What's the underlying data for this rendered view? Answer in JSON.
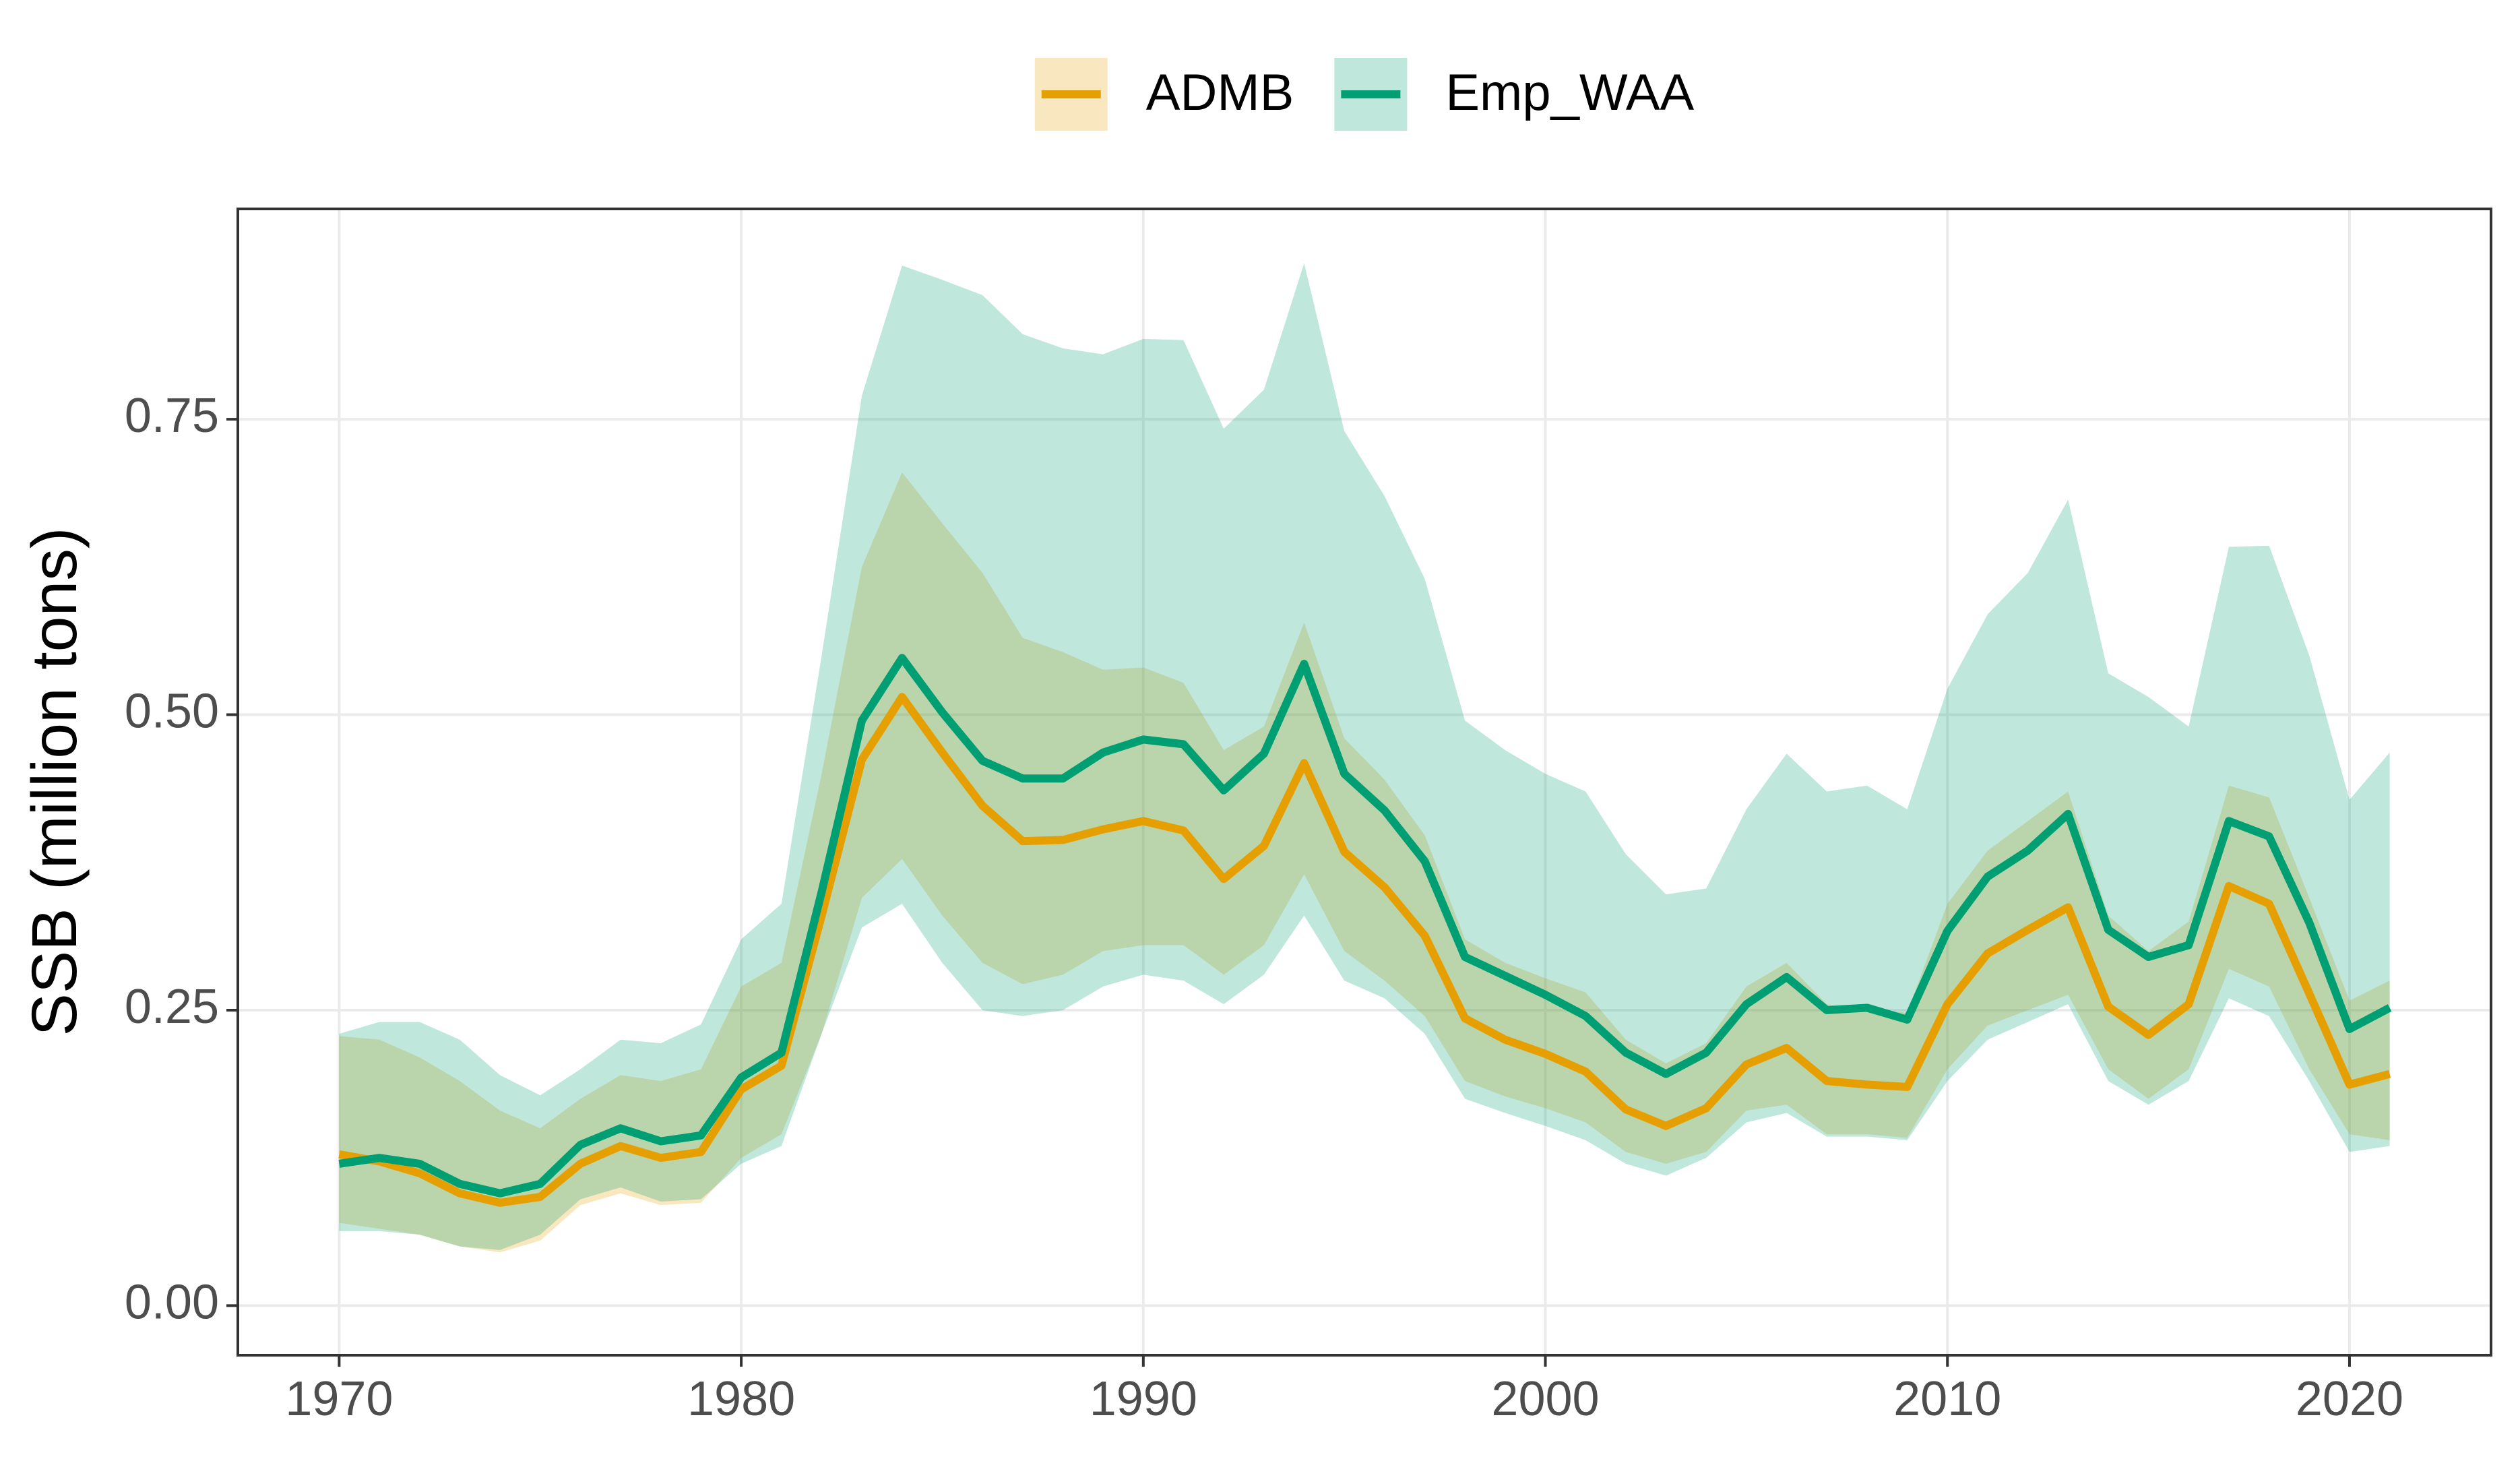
{
  "chart_data": {
    "type": "line",
    "y_label": "SSB (million tons)",
    "x": [
      1970,
      1971,
      1972,
      1973,
      1974,
      1975,
      1976,
      1977,
      1978,
      1979,
      1980,
      1981,
      1982,
      1983,
      1984,
      1985,
      1986,
      1987,
      1988,
      1989,
      1990,
      1991,
      1992,
      1993,
      1994,
      1995,
      1996,
      1997,
      1998,
      1999,
      2000,
      2001,
      2002,
      2003,
      2004,
      2005,
      2006,
      2007,
      2008,
      2009,
      2010,
      2011,
      2012,
      2013,
      2014,
      2015,
      2016,
      2017,
      2018,
      2019,
      2020,
      2021
    ],
    "series": [
      {
        "name": "ADMB",
        "color": "#E69F00",
        "values": [
          0.128,
          0.122,
          0.112,
          0.095,
          0.087,
          0.092,
          0.12,
          0.135,
          0.125,
          0.13,
          0.183,
          0.203,
          0.33,
          0.462,
          0.515,
          0.468,
          0.423,
          0.393,
          0.394,
          0.403,
          0.41,
          0.402,
          0.361,
          0.389,
          0.459,
          0.384,
          0.354,
          0.313,
          0.243,
          0.225,
          0.213,
          0.198,
          0.166,
          0.152,
          0.167,
          0.204,
          0.218,
          0.19,
          0.187,
          0.185,
          0.255,
          0.298,
          0.318,
          0.337,
          0.253,
          0.229,
          0.255,
          0.355,
          0.34,
          0.264,
          0.187,
          0.196
        ],
        "lower": [
          0.07,
          0.065,
          0.06,
          0.05,
          0.045,
          0.055,
          0.085,
          0.095,
          0.085,
          0.087,
          0.125,
          0.145,
          0.23,
          0.345,
          0.378,
          0.33,
          0.29,
          0.272,
          0.28,
          0.3,
          0.305,
          0.305,
          0.28,
          0.305,
          0.365,
          0.3,
          0.275,
          0.245,
          0.19,
          0.177,
          0.167,
          0.155,
          0.13,
          0.12,
          0.13,
          0.165,
          0.17,
          0.145,
          0.145,
          0.142,
          0.2,
          0.237,
          0.25,
          0.263,
          0.2,
          0.175,
          0.2,
          0.285,
          0.27,
          0.2,
          0.145,
          0.14
        ],
        "upper": [
          0.228,
          0.225,
          0.21,
          0.19,
          0.165,
          0.15,
          0.175,
          0.195,
          0.19,
          0.2,
          0.27,
          0.29,
          0.45,
          0.625,
          0.705,
          0.662,
          0.62,
          0.565,
          0.553,
          0.538,
          0.54,
          0.527,
          0.47,
          0.49,
          0.578,
          0.48,
          0.445,
          0.398,
          0.31,
          0.29,
          0.277,
          0.265,
          0.225,
          0.205,
          0.222,
          0.27,
          0.29,
          0.255,
          0.25,
          0.248,
          0.34,
          0.385,
          0.41,
          0.435,
          0.33,
          0.3,
          0.325,
          0.44,
          0.43,
          0.345,
          0.258,
          0.275
        ]
      },
      {
        "name": "Emp_WAA",
        "color": "#009E73",
        "values": [
          0.12,
          0.125,
          0.12,
          0.103,
          0.095,
          0.103,
          0.136,
          0.15,
          0.139,
          0.144,
          0.193,
          0.214,
          0.35,
          0.495,
          0.548,
          0.502,
          0.461,
          0.446,
          0.446,
          0.468,
          0.479,
          0.475,
          0.436,
          0.467,
          0.543,
          0.45,
          0.419,
          0.376,
          0.295,
          0.279,
          0.263,
          0.245,
          0.214,
          0.196,
          0.214,
          0.255,
          0.278,
          0.25,
          0.252,
          0.242,
          0.317,
          0.363,
          0.385,
          0.416,
          0.318,
          0.295,
          0.305,
          0.41,
          0.397,
          0.324,
          0.234,
          0.252
        ],
        "lower": [
          0.063,
          0.063,
          0.06,
          0.05,
          0.047,
          0.06,
          0.09,
          0.1,
          0.088,
          0.09,
          0.12,
          0.135,
          0.23,
          0.32,
          0.34,
          0.29,
          0.25,
          0.245,
          0.25,
          0.27,
          0.28,
          0.275,
          0.255,
          0.28,
          0.33,
          0.275,
          0.26,
          0.23,
          0.175,
          0.163,
          0.152,
          0.14,
          0.12,
          0.11,
          0.125,
          0.155,
          0.163,
          0.143,
          0.143,
          0.14,
          0.19,
          0.225,
          0.24,
          0.255,
          0.19,
          0.17,
          0.19,
          0.26,
          0.245,
          0.19,
          0.13,
          0.135
        ],
        "upper": [
          0.23,
          0.24,
          0.24,
          0.225,
          0.195,
          0.178,
          0.2,
          0.225,
          0.222,
          0.238,
          0.31,
          0.34,
          0.55,
          0.77,
          0.88,
          0.868,
          0.855,
          0.822,
          0.81,
          0.805,
          0.818,
          0.817,
          0.742,
          0.775,
          0.882,
          0.74,
          0.685,
          0.615,
          0.495,
          0.47,
          0.45,
          0.435,
          0.382,
          0.348,
          0.353,
          0.42,
          0.467,
          0.435,
          0.44,
          0.42,
          0.522,
          0.585,
          0.62,
          0.682,
          0.535,
          0.515,
          0.49,
          0.642,
          0.643,
          0.55,
          0.428,
          0.468
        ]
      }
    ],
    "xlim": [
      1967.48,
      2023.52
    ],
    "xticks": [
      1970,
      1980,
      1990,
      2000,
      2010,
      2020
    ],
    "ylim": [
      -0.042,
      0.928
    ],
    "yticks": [
      {
        "value": 0,
        "label": "0.00"
      },
      {
        "value": 0.25,
        "label": "0.25"
      },
      {
        "value": 0.5,
        "label": "0.50"
      },
      {
        "value": 0.75,
        "label": "0.75"
      }
    ],
    "grid": true,
    "legend_position": "top"
  }
}
